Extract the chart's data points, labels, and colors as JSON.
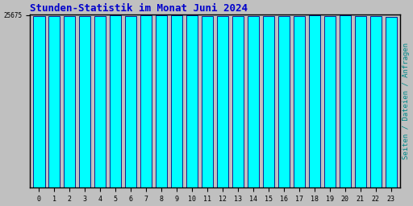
{
  "title": "Stunden-Statistik im Monat Juni 2024",
  "title_color": "#0000cc",
  "title_fontsize": 9,
  "ylabel": "Seiten / Dateien / Anfragen",
  "ylabel_color": "#008888",
  "ylabel_fontsize": 6.5,
  "ytick_label": "25675",
  "ytick_value": 25675,
  "xtick_labels": [
    "0",
    "1",
    "2",
    "3",
    "4",
    "5",
    "6",
    "7",
    "8",
    "9",
    "10",
    "11",
    "12",
    "13",
    "14",
    "15",
    "16",
    "17",
    "18",
    "19",
    "20",
    "21",
    "22",
    "23"
  ],
  "background_color": "#c0c0c0",
  "plot_bg_color": "#c0c0c0",
  "bar_face_color": "#00ffff",
  "bar_edge_color": "#000080",
  "bar_width": 0.75,
  "values": [
    25580,
    25590,
    25600,
    25585,
    25595,
    25660,
    25550,
    25620,
    25615,
    25640,
    25650,
    25600,
    25580,
    25575,
    25530,
    25520,
    25510,
    25565,
    25615,
    25600,
    25645,
    25595,
    25575,
    25460
  ],
  "ylim_min": 0,
  "ylim_max": 25750,
  "border_color": "#000000",
  "font_family": "monospace"
}
